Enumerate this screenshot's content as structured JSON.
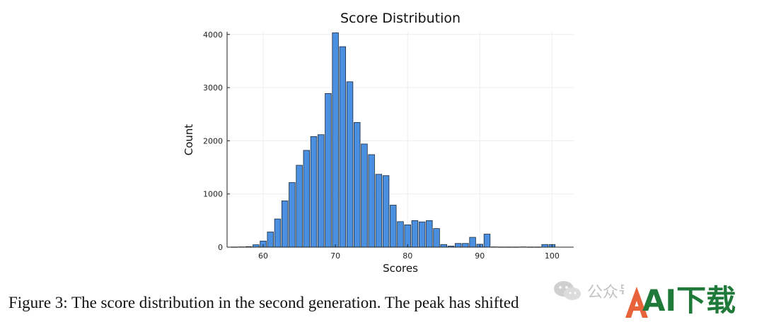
{
  "chart_data": {
    "type": "bar",
    "title": "Score Distribution",
    "xlabel": "Scores",
    "ylabel": "Count",
    "xlim": [
      55,
      103
    ],
    "ylim": [
      0,
      4050
    ],
    "xticks": [
      60,
      70,
      80,
      90,
      100
    ],
    "yticks": [
      0,
      1000,
      2000,
      3000,
      4000
    ],
    "bin_width": 1,
    "bins": [
      56,
      57,
      58,
      59,
      60,
      61,
      62,
      63,
      64,
      65,
      66,
      67,
      68,
      69,
      70,
      71,
      72,
      73,
      74,
      75,
      76,
      77,
      78,
      79,
      80,
      81,
      82,
      83,
      84,
      85,
      86,
      87,
      88,
      89,
      90,
      91,
      92,
      93,
      94,
      95,
      96,
      97,
      98,
      99,
      100
    ],
    "values": [
      3,
      5,
      10,
      45,
      115,
      285,
      530,
      870,
      1215,
      1540,
      1820,
      2080,
      2115,
      2890,
      4030,
      3770,
      3110,
      2345,
      1940,
      1740,
      1370,
      1345,
      790,
      480,
      420,
      500,
      475,
      500,
      350,
      50,
      20,
      70,
      70,
      185,
      55,
      245,
      5,
      3,
      3,
      3,
      5,
      3,
      3,
      50,
      50
    ],
    "grid": true,
    "legend": "none",
    "bar_color": "#4a8fe0",
    "bar_edge_color": "#1a2a3a"
  },
  "caption": "Figure 3: The score distribution in the second generation. The peak has shifted",
  "watermarks": {
    "social_icon": "wechat-icon",
    "social_text": "公众号",
    "ai_logo_text": "AI下载",
    "ai_logo_color": "#1f7a3a"
  }
}
